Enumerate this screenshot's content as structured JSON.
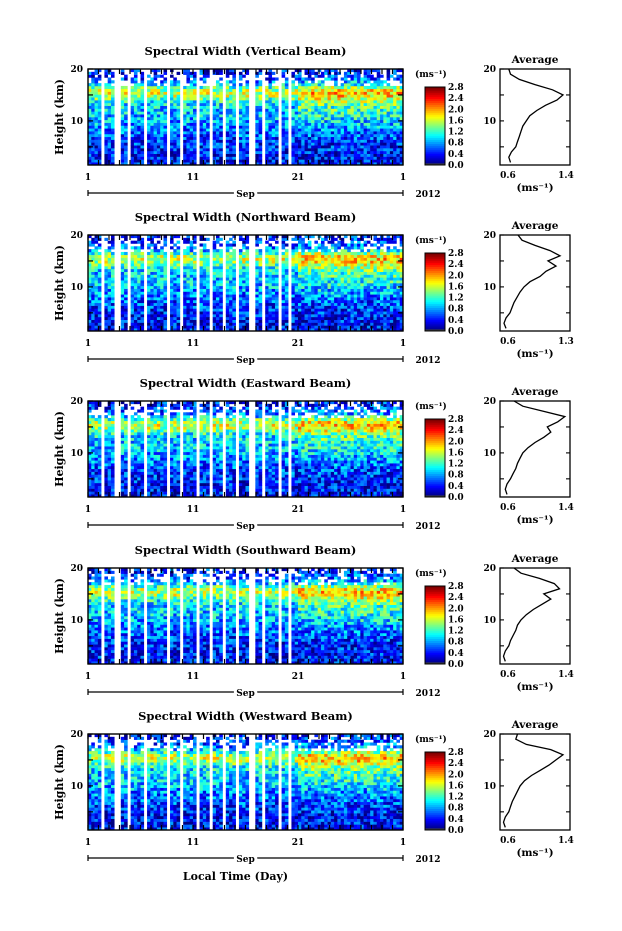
{
  "figure": {
    "x_axis_label": "Local Time (Day)",
    "x_ticks": [
      "1",
      "11",
      "21",
      "1"
    ],
    "month_label": "Sep",
    "year_label": "2012",
    "y_axis_label": "Height (km)",
    "y_ticks": [
      "10",
      "20"
    ],
    "colorbar_unit": "(ms⁻¹)",
    "colorbar_ticks": [
      "0.0",
      "0.4",
      "0.8",
      "1.2",
      "1.6",
      "2.0",
      "2.4",
      "2.8"
    ],
    "average_title": "Average",
    "average_unit": "(ms⁻¹)"
  },
  "chart_data": [
    {
      "type": "heatmap",
      "title": "Spectral Width (Vertical Beam)",
      "xlabel": "Local Time (Day)",
      "ylabel": "Height (km)",
      "x_ticks": [
        "1",
        "11",
        "21",
        "1"
      ],
      "y_ticks": [
        "10",
        "20"
      ],
      "ylim": [
        1.5,
        20
      ],
      "colorbar": {
        "unit": "(ms⁻¹)",
        "range": [
          0.0,
          2.8
        ],
        "ticks": [
          "0.0",
          "0.4",
          "0.8",
          "1.2",
          "1.6",
          "2.0",
          "2.4",
          "2.8"
        ]
      },
      "average_profile": {
        "title": "Average",
        "xlabel": "(ms⁻¹)",
        "xticks": [
          "0.6",
          "1.4"
        ],
        "xlim": [
          0.6,
          1.4
        ],
        "height_km": [
          2,
          3,
          4,
          5,
          6,
          7,
          8,
          9,
          10,
          11,
          12,
          13,
          14,
          15,
          16,
          17,
          18,
          19,
          20
        ],
        "value": [
          0.72,
          0.7,
          0.73,
          0.78,
          0.8,
          0.82,
          0.84,
          0.86,
          0.9,
          0.94,
          1.02,
          1.12,
          1.25,
          1.32,
          1.2,
          1.0,
          0.82,
          0.72,
          0.7
        ]
      }
    },
    {
      "type": "heatmap",
      "title": "Spectral Width (Northward Beam)",
      "xlabel": "Local Time (Day)",
      "ylabel": "Height (km)",
      "x_ticks": [
        "1",
        "11",
        "21",
        "1"
      ],
      "y_ticks": [
        "10",
        "20"
      ],
      "ylim": [
        1.5,
        20
      ],
      "colorbar": {
        "unit": "(ms⁻¹)",
        "range": [
          0.0,
          2.8
        ],
        "ticks": [
          "0.0",
          "0.4",
          "0.8",
          "1.2",
          "1.6",
          "2.0",
          "2.4",
          "2.8"
        ]
      },
      "average_profile": {
        "title": "Average",
        "xlabel": "(ms⁻¹)",
        "xticks": [
          "0.6",
          "1.3"
        ],
        "xlim": [
          0.6,
          1.3
        ],
        "height_km": [
          2,
          3,
          4,
          5,
          6,
          7,
          8,
          9,
          10,
          11,
          12,
          13,
          14,
          15,
          16,
          17,
          18,
          19,
          20
        ],
        "value": [
          0.66,
          0.64,
          0.66,
          0.7,
          0.72,
          0.74,
          0.77,
          0.8,
          0.84,
          0.9,
          1.0,
          1.06,
          1.16,
          1.08,
          1.2,
          1.1,
          0.95,
          0.82,
          0.78
        ]
      }
    },
    {
      "type": "heatmap",
      "title": "Spectral Width (Eastward Beam)",
      "xlabel": "Local Time (Day)",
      "ylabel": "Height (km)",
      "x_ticks": [
        "1",
        "11",
        "21",
        "1"
      ],
      "y_ticks": [
        "10",
        "20"
      ],
      "ylim": [
        1.5,
        20
      ],
      "colorbar": {
        "unit": "(ms⁻¹)",
        "range": [
          0.0,
          2.8
        ],
        "ticks": [
          "0.0",
          "0.4",
          "0.8",
          "1.2",
          "1.6",
          "2.0",
          "2.4",
          "2.8"
        ]
      },
      "average_profile": {
        "title": "Average",
        "xlabel": "(ms⁻¹)",
        "xticks": [
          "0.6",
          "1.4"
        ],
        "xlim": [
          0.6,
          1.4
        ],
        "height_km": [
          2,
          3,
          4,
          5,
          6,
          7,
          8,
          9,
          10,
          11,
          12,
          13,
          14,
          15,
          16,
          17,
          18,
          19,
          20
        ],
        "value": [
          0.68,
          0.66,
          0.68,
          0.72,
          0.75,
          0.78,
          0.8,
          0.83,
          0.86,
          0.92,
          1.0,
          1.1,
          1.18,
          1.14,
          1.26,
          1.34,
          1.1,
          0.86,
          0.76
        ]
      }
    },
    {
      "type": "heatmap",
      "title": "Spectral Width (Southward Beam)",
      "xlabel": "Local Time (Day)",
      "ylabel": "Height (km)",
      "x_ticks": [
        "1",
        "11",
        "21",
        "1"
      ],
      "y_ticks": [
        "10",
        "20"
      ],
      "ylim": [
        1.5,
        20
      ],
      "colorbar": {
        "unit": "(ms⁻¹)",
        "range": [
          0.0,
          2.8
        ],
        "ticks": [
          "0.0",
          "0.4",
          "0.8",
          "1.2",
          "1.6",
          "2.0",
          "2.4",
          "2.8"
        ]
      },
      "average_profile": {
        "title": "Average",
        "xlabel": "(ms⁻¹)",
        "xticks": [
          "0.6",
          "1.4"
        ],
        "xlim": [
          0.6,
          1.4
        ],
        "height_km": [
          2,
          3,
          4,
          5,
          6,
          7,
          8,
          9,
          10,
          11,
          12,
          13,
          14,
          15,
          16,
          17,
          18,
          19,
          20
        ],
        "value": [
          0.66,
          0.64,
          0.66,
          0.7,
          0.72,
          0.75,
          0.78,
          0.8,
          0.84,
          0.9,
          0.98,
          1.08,
          1.18,
          1.1,
          1.28,
          1.22,
          1.05,
          0.84,
          0.76
        ]
      }
    },
    {
      "type": "heatmap",
      "title": "Spectral Width (Westward Beam)",
      "xlabel": "Local Time (Day)",
      "ylabel": "Height (km)",
      "x_ticks": [
        "1",
        "11",
        "21",
        "1"
      ],
      "y_ticks": [
        "10",
        "20"
      ],
      "ylim": [
        1.5,
        20
      ],
      "colorbar": {
        "unit": "(ms⁻¹)",
        "range": [
          0.0,
          2.8
        ],
        "ticks": [
          "0.0",
          "0.4",
          "0.8",
          "1.2",
          "1.6",
          "2.0",
          "2.4",
          "2.8"
        ]
      },
      "average_profile": {
        "title": "Average",
        "xlabel": "(ms⁻¹)",
        "xticks": [
          "0.6",
          "1.4"
        ],
        "xlim": [
          0.6,
          1.4
        ],
        "height_km": [
          2,
          3,
          4,
          5,
          6,
          7,
          8,
          9,
          10,
          11,
          12,
          13,
          14,
          15,
          16,
          17,
          18,
          19,
          20
        ],
        "value": [
          0.66,
          0.64,
          0.66,
          0.7,
          0.72,
          0.74,
          0.77,
          0.8,
          0.83,
          0.88,
          0.96,
          1.06,
          1.16,
          1.24,
          1.32,
          1.18,
          0.9,
          0.78,
          0.8
        ]
      }
    }
  ]
}
